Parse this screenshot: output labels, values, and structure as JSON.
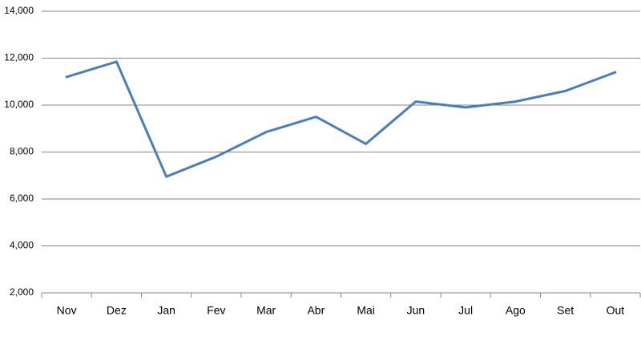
{
  "chart_data": {
    "type": "line",
    "categories": [
      "Nov",
      "Dez",
      "Jan",
      "Fev",
      "Mar",
      "Abr",
      "Mai",
      "Jun",
      "Jul",
      "Ago",
      "Set",
      "Out"
    ],
    "values": [
      11200,
      11850,
      6950,
      7800,
      8850,
      9500,
      8350,
      10150,
      9900,
      10150,
      10600,
      11400
    ],
    "color": "#4a7ebb",
    "ylim": [
      2000,
      14000
    ],
    "yticks": [
      {
        "value": 2000,
        "label": "2,000"
      },
      {
        "value": 4000,
        "label": "4,000"
      },
      {
        "value": 6000,
        "label": "6,000"
      },
      {
        "value": 8000,
        "label": "8,000"
      },
      {
        "value": 10000,
        "label": "10,000"
      },
      {
        "value": 12000,
        "label": "12,000"
      },
      {
        "value": 14000,
        "label": "14,000"
      }
    ],
    "grid": true
  }
}
